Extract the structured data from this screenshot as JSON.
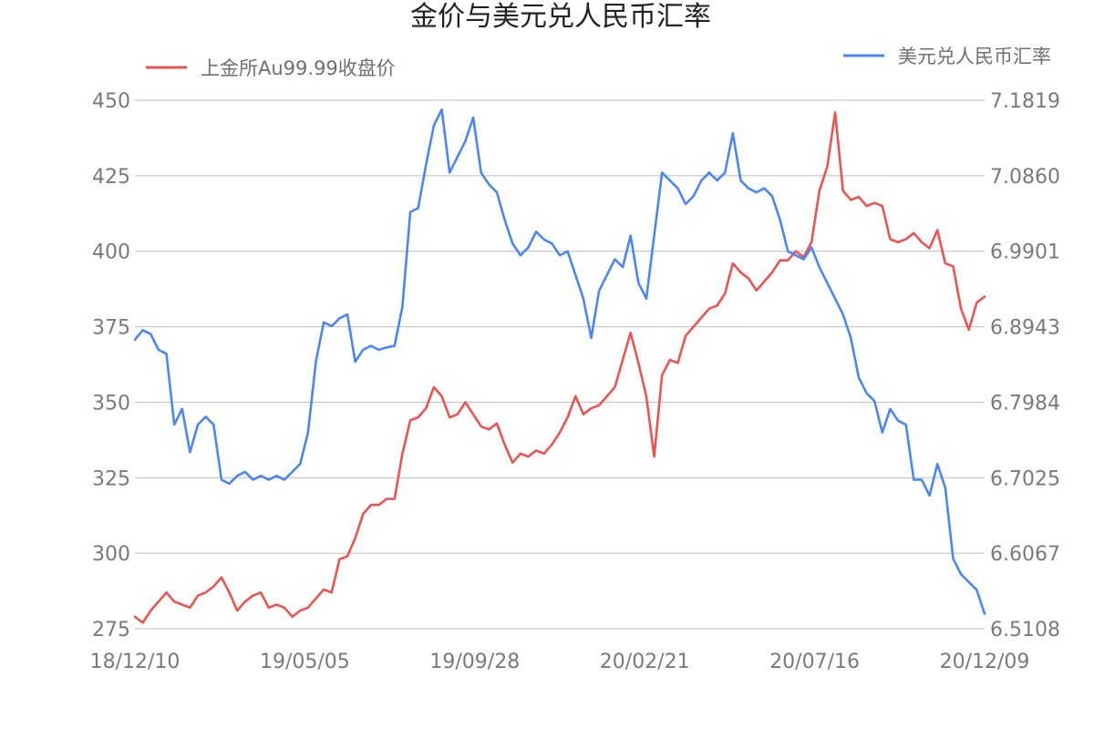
{
  "chart_data": {
    "type": "line",
    "title": "金价与美元兑人民币汇率",
    "x_ticks": [
      "18/12/10",
      "19/05/05",
      "19/09/28",
      "20/02/21",
      "20/07/16",
      "20/12/09"
    ],
    "y_left_ticks": [
      "275",
      "300",
      "325",
      "350",
      "375",
      "400",
      "425",
      "450"
    ],
    "y_right_ticks": [
      "6.5108",
      "6.6067",
      "6.7025",
      "6.7984",
      "6.8943",
      "6.9901",
      "7.0860",
      "7.1819"
    ],
    "ylim_left": [
      275,
      450
    ],
    "ylim_right": [
      6.5108,
      7.1819
    ],
    "grid": true,
    "series": [
      {
        "name": "上金所Au99.99收盘价",
        "axis": "left",
        "color": "#ef5350",
        "points": [
          [
            0,
            279
          ],
          [
            3,
            277
          ],
          [
            6,
            281
          ],
          [
            9,
            284
          ],
          [
            12,
            287
          ],
          [
            15,
            284
          ],
          [
            18,
            283
          ],
          [
            21,
            282
          ],
          [
            24,
            286
          ],
          [
            27,
            287
          ],
          [
            30,
            289
          ],
          [
            33,
            292
          ],
          [
            36,
            287
          ],
          [
            39,
            281
          ],
          [
            42,
            284
          ],
          [
            45,
            286
          ],
          [
            48,
            287
          ],
          [
            51,
            282
          ],
          [
            54,
            283
          ],
          [
            57,
            282
          ],
          [
            60,
            279
          ],
          [
            63,
            281
          ],
          [
            66,
            282
          ],
          [
            69,
            285
          ],
          [
            72,
            288
          ],
          [
            75,
            287
          ],
          [
            78,
            298
          ],
          [
            81,
            299
          ],
          [
            84,
            305
          ],
          [
            87,
            313
          ],
          [
            90,
            316
          ],
          [
            93,
            316
          ],
          [
            96,
            318
          ],
          [
            99,
            318
          ],
          [
            102,
            333
          ],
          [
            105,
            344
          ],
          [
            108,
            345
          ],
          [
            111,
            348
          ],
          [
            114,
            355
          ],
          [
            117,
            352
          ],
          [
            120,
            345
          ],
          [
            123,
            346
          ],
          [
            126,
            350
          ],
          [
            129,
            346
          ],
          [
            132,
            342
          ],
          [
            135,
            341
          ],
          [
            138,
            343
          ],
          [
            141,
            336
          ],
          [
            144,
            330
          ],
          [
            147,
            333
          ],
          [
            150,
            332
          ],
          [
            153,
            334
          ],
          [
            156,
            333
          ],
          [
            159,
            336
          ],
          [
            162,
            340
          ],
          [
            165,
            345
          ],
          [
            168,
            352
          ],
          [
            171,
            346
          ],
          [
            174,
            348
          ],
          [
            177,
            349
          ],
          [
            180,
            352
          ],
          [
            183,
            355
          ],
          [
            186,
            364
          ],
          [
            189,
            373
          ],
          [
            192,
            363
          ],
          [
            195,
            352
          ],
          [
            198,
            332
          ],
          [
            201,
            359
          ],
          [
            204,
            364
          ],
          [
            207,
            363
          ],
          [
            210,
            372
          ],
          [
            213,
            375
          ],
          [
            216,
            378
          ],
          [
            219,
            381
          ],
          [
            222,
            382
          ],
          [
            225,
            386
          ],
          [
            228,
            396
          ],
          [
            231,
            393
          ],
          [
            234,
            391
          ],
          [
            237,
            387
          ],
          [
            240,
            390
          ],
          [
            243,
            393
          ],
          [
            246,
            397
          ],
          [
            249,
            397
          ],
          [
            252,
            400
          ],
          [
            255,
            398
          ],
          [
            258,
            403
          ],
          [
            261,
            420
          ],
          [
            264,
            428
          ],
          [
            267,
            446
          ],
          [
            270,
            420
          ],
          [
            273,
            417
          ],
          [
            276,
            418
          ],
          [
            279,
            415
          ],
          [
            282,
            416
          ],
          [
            285,
            415
          ],
          [
            288,
            404
          ],
          [
            291,
            403
          ],
          [
            294,
            404
          ],
          [
            297,
            406
          ],
          [
            300,
            403
          ],
          [
            303,
            401
          ],
          [
            306,
            407
          ],
          [
            309,
            396
          ],
          [
            312,
            395
          ],
          [
            315,
            381
          ],
          [
            318,
            374
          ],
          [
            321,
            383
          ],
          [
            324,
            385
          ]
        ]
      },
      {
        "name": "美元兑人民币汇率",
        "axis": "right",
        "color": "#4a86f5",
        "points": [
          [
            0,
            6.878
          ],
          [
            3,
            6.89
          ],
          [
            6,
            6.885
          ],
          [
            9,
            6.865
          ],
          [
            12,
            6.86
          ],
          [
            15,
            6.77
          ],
          [
            18,
            6.79
          ],
          [
            21,
            6.735
          ],
          [
            24,
            6.77
          ],
          [
            27,
            6.78
          ],
          [
            30,
            6.77
          ],
          [
            33,
            6.7
          ],
          [
            36,
            6.695
          ],
          [
            39,
            6.705
          ],
          [
            42,
            6.71
          ],
          [
            45,
            6.7
          ],
          [
            48,
            6.705
          ],
          [
            51,
            6.7
          ],
          [
            54,
            6.705
          ],
          [
            57,
            6.7
          ],
          [
            60,
            6.71
          ],
          [
            63,
            6.72
          ],
          [
            66,
            6.76
          ],
          [
            69,
            6.85
          ],
          [
            72,
            6.9
          ],
          [
            75,
            6.895
          ],
          [
            78,
            6.905
          ],
          [
            81,
            6.91
          ],
          [
            84,
            6.85
          ],
          [
            87,
            6.865
          ],
          [
            90,
            6.87
          ],
          [
            93,
            6.865
          ],
          [
            96,
            6.868
          ],
          [
            99,
            6.87
          ],
          [
            102,
            6.92
          ],
          [
            105,
            7.04
          ],
          [
            108,
            7.045
          ],
          [
            111,
            7.1
          ],
          [
            114,
            7.15
          ],
          [
            117,
            7.17
          ],
          [
            120,
            7.09
          ],
          [
            123,
            7.11
          ],
          [
            126,
            7.13
          ],
          [
            129,
            7.16
          ],
          [
            132,
            7.09
          ],
          [
            135,
            7.075
          ],
          [
            138,
            7.065
          ],
          [
            141,
            7.03
          ],
          [
            144,
            7.0
          ],
          [
            147,
            6.985
          ],
          [
            150,
            6.995
          ],
          [
            153,
            7.015
          ],
          [
            156,
            7.005
          ],
          [
            159,
            7.0
          ],
          [
            162,
            6.985
          ],
          [
            165,
            6.99
          ],
          [
            168,
            6.96
          ],
          [
            171,
            6.93
          ],
          [
            174,
            6.88
          ],
          [
            177,
            6.94
          ],
          [
            180,
            6.96
          ],
          [
            183,
            6.98
          ],
          [
            186,
            6.97
          ],
          [
            189,
            7.01
          ],
          [
            192,
            6.95
          ],
          [
            195,
            6.93
          ],
          [
            198,
            7.01
          ],
          [
            201,
            7.09
          ],
          [
            204,
            7.08
          ],
          [
            207,
            7.07
          ],
          [
            210,
            7.05
          ],
          [
            213,
            7.06
          ],
          [
            216,
            7.08
          ],
          [
            219,
            7.09
          ],
          [
            222,
            7.08
          ],
          [
            225,
            7.09
          ],
          [
            228,
            7.14
          ],
          [
            231,
            7.08
          ],
          [
            234,
            7.07
          ],
          [
            237,
            7.065
          ],
          [
            240,
            7.07
          ],
          [
            243,
            7.06
          ],
          [
            246,
            7.03
          ],
          [
            249,
            6.99
          ],
          [
            252,
            6.985
          ],
          [
            255,
            6.98
          ],
          [
            258,
            6.995
          ],
          [
            261,
            6.97
          ],
          [
            264,
            6.95
          ],
          [
            267,
            6.93
          ],
          [
            270,
            6.91
          ],
          [
            273,
            6.88
          ],
          [
            276,
            6.83
          ],
          [
            279,
            6.81
          ],
          [
            282,
            6.8
          ],
          [
            285,
            6.76
          ],
          [
            288,
            6.79
          ],
          [
            291,
            6.775
          ],
          [
            294,
            6.77
          ],
          [
            297,
            6.7
          ],
          [
            300,
            6.7
          ],
          [
            303,
            6.68
          ],
          [
            306,
            6.72
          ],
          [
            309,
            6.69
          ],
          [
            312,
            6.6
          ],
          [
            315,
            6.58
          ],
          [
            318,
            6.57
          ],
          [
            321,
            6.56
          ],
          [
            324,
            6.53
          ]
        ]
      }
    ]
  }
}
